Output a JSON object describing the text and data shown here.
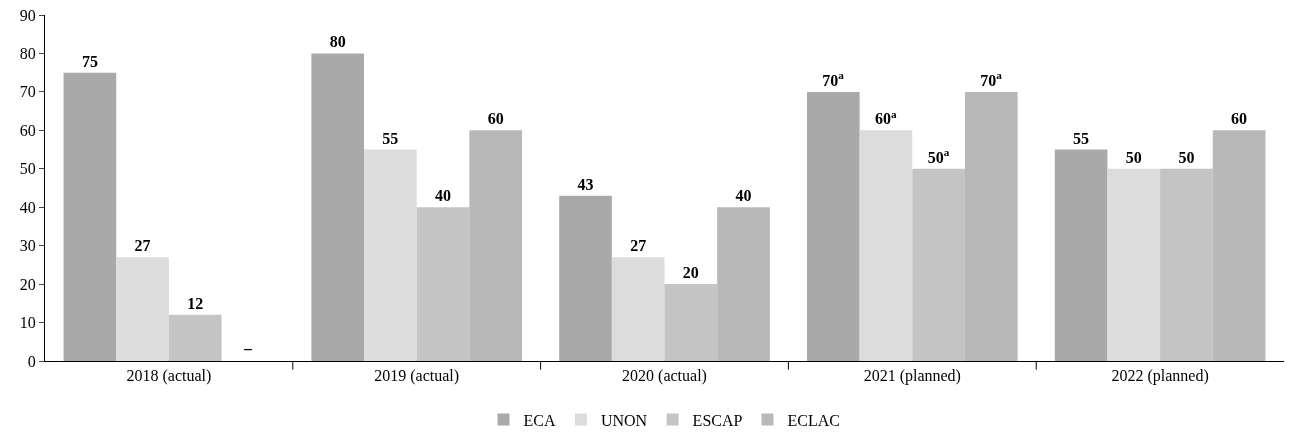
{
  "chart_data": {
    "type": "bar",
    "categories": [
      "2018 (actual)",
      "2019 (actual)",
      "2020 (actual)",
      "2021 (planned)",
      "2022 (planned)"
    ],
    "series": [
      {
        "name": "ECA",
        "color": "#a9a9a9",
        "values": [
          75,
          80,
          43,
          70,
          55
        ],
        "value_labels": [
          "75",
          "80",
          "43",
          "70$^{a}$",
          "55"
        ]
      },
      {
        "name": "UNON",
        "color": "#dcdcdc",
        "values": [
          27,
          55,
          27,
          60,
          50
        ],
        "value_labels": [
          "27",
          "55",
          "27",
          "60$^{a}$",
          "50"
        ]
      },
      {
        "name": "ESCAP",
        "color": "#c4c4c4",
        "values": [
          12,
          40,
          20,
          50,
          50
        ],
        "value_labels": [
          "12",
          "40",
          "20",
          "50$^{a}$",
          "50"
        ]
      },
      {
        "name": "ECLAC",
        "color": "#b8b8b8",
        "values": [
          null,
          60,
          40,
          70,
          60
        ],
        "value_labels": [
          "–",
          "60",
          "40",
          "70$^{a}$",
          "60"
        ]
      }
    ],
    "ylim": [
      0,
      90
    ],
    "yticks": [
      0,
      10,
      20,
      30,
      40,
      50,
      60,
      70,
      80,
      90
    ],
    "grid": false,
    "legend": "bottom"
  }
}
